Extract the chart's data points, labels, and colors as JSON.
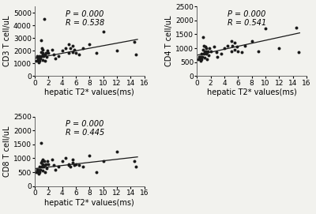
{
  "plots": [
    {
      "ylabel": "CD3 T cell/uL",
      "xlabel": "hepatic T2* values(ms)",
      "p_text": "P = 0.000",
      "r_text": "R = 0.538",
      "xlim": [
        0,
        16
      ],
      "ylim": [
        0,
        5500
      ],
      "yticks": [
        0,
        1000,
        2000,
        3000,
        4000,
        5000
      ],
      "xticks": [
        0,
        2,
        4,
        6,
        8,
        10,
        12,
        14,
        16
      ],
      "scatter_x": [
        0.2,
        0.3,
        0.4,
        0.5,
        0.5,
        0.6,
        0.7,
        0.7,
        0.8,
        0.9,
        0.9,
        1.0,
        1.0,
        1.1,
        1.1,
        1.2,
        1.2,
        1.3,
        1.4,
        1.5,
        1.5,
        1.6,
        1.7,
        1.8,
        2.0,
        2.5,
        2.8,
        3.0,
        3.5,
        4.0,
        4.5,
        5.0,
        5.0,
        5.2,
        5.5,
        5.5,
        5.8,
        6.0,
        6.5,
        7.0,
        8.0,
        9.0,
        10.0,
        12.0,
        14.5,
        14.8
      ],
      "scatter_y": [
        1200,
        1500,
        1600,
        1400,
        1300,
        1100,
        1600,
        1200,
        1400,
        2800,
        1900,
        1600,
        2200,
        1700,
        1300,
        1800,
        2100,
        1600,
        4500,
        1200,
        1700,
        1800,
        1500,
        2000,
        1800,
        2100,
        1700,
        1400,
        1600,
        2000,
        2200,
        2500,
        1800,
        2200,
        1900,
        2400,
        2100,
        1800,
        1700,
        2200,
        2500,
        1800,
        3500,
        2000,
        2700,
        1700
      ],
      "trend_x": [
        0,
        15
      ],
      "trend_y": [
        1400,
        2900
      ]
    },
    {
      "ylabel": "CD4 T cell/uL",
      "xlabel": "hepatic T2* values(ms)",
      "p_text": "P = 0.000",
      "r_text": "R = 0.541",
      "xlim": [
        0,
        16
      ],
      "ylim": [
        0,
        2500
      ],
      "yticks": [
        0,
        500,
        1000,
        1500,
        2000,
        2500
      ],
      "xticks": [
        0,
        2,
        4,
        6,
        8,
        10,
        12,
        14,
        16
      ],
      "scatter_x": [
        0.2,
        0.3,
        0.4,
        0.5,
        0.5,
        0.6,
        0.7,
        0.7,
        0.8,
        0.9,
        0.9,
        1.0,
        1.0,
        1.1,
        1.1,
        1.2,
        1.2,
        1.3,
        1.4,
        1.5,
        1.5,
        1.6,
        1.7,
        1.8,
        2.0,
        2.5,
        2.8,
        3.0,
        3.5,
        4.0,
        4.5,
        5.0,
        5.0,
        5.2,
        5.5,
        5.5,
        5.8,
        6.0,
        6.5,
        7.0,
        8.0,
        9.0,
        10.0,
        12.0,
        14.5,
        14.8
      ],
      "scatter_y": [
        600,
        700,
        700,
        700,
        600,
        550,
        800,
        600,
        700,
        1400,
        950,
        800,
        1100,
        850,
        650,
        900,
        1050,
        800,
        1000,
        600,
        850,
        900,
        750,
        1000,
        900,
        1050,
        850,
        700,
        800,
        1000,
        1100,
        1250,
        900,
        1100,
        950,
        1200,
        1050,
        900,
        850,
        1100,
        1250,
        900,
        1700,
        1000,
        1750,
        850
      ],
      "trend_x": [
        0,
        15
      ],
      "trend_y": [
        750,
        1550
      ]
    },
    {
      "ylabel": "CD8 T cell/uL",
      "xlabel": "hepatic T2* values(ms)",
      "p_text": "P = 0.000",
      "r_text": "R = 0.445",
      "xlim": [
        0,
        16
      ],
      "ylim": [
        0,
        2500
      ],
      "yticks": [
        0,
        500,
        1000,
        1500,
        2000,
        2500
      ],
      "xticks": [
        0,
        2,
        4,
        6,
        8,
        10,
        12,
        14,
        16
      ],
      "scatter_x": [
        0.2,
        0.3,
        0.4,
        0.5,
        0.5,
        0.6,
        0.7,
        0.7,
        0.8,
        0.9,
        0.9,
        1.0,
        1.0,
        1.1,
        1.1,
        1.2,
        1.2,
        1.3,
        1.4,
        1.5,
        1.5,
        1.6,
        1.7,
        1.8,
        2.0,
        2.5,
        2.8,
        3.0,
        3.5,
        4.0,
        4.5,
        5.0,
        5.0,
        5.2,
        5.5,
        5.5,
        5.8,
        6.0,
        6.5,
        7.0,
        8.0,
        9.0,
        10.0,
        12.0,
        14.5,
        14.8
      ],
      "scatter_y": [
        500,
        600,
        600,
        600,
        500,
        450,
        700,
        500,
        600,
        1550,
        850,
        700,
        900,
        750,
        550,
        800,
        950,
        700,
        900,
        500,
        750,
        800,
        650,
        900,
        800,
        950,
        750,
        600,
        700,
        900,
        1000,
        750,
        800,
        700,
        850,
        950,
        750,
        800,
        750,
        700,
        1100,
        500,
        900,
        1250,
        900,
        700
      ],
      "trend_x": [
        0,
        15
      ],
      "trend_y": [
        630,
        1050
      ]
    }
  ],
  "bg_color": "#f2f2ee",
  "scatter_color": "#1a1a1a",
  "line_color": "#1a1a1a",
  "marker_size": 8.0,
  "font_size_label": 7,
  "font_size_annot": 7,
  "font_size_tick": 6.5
}
